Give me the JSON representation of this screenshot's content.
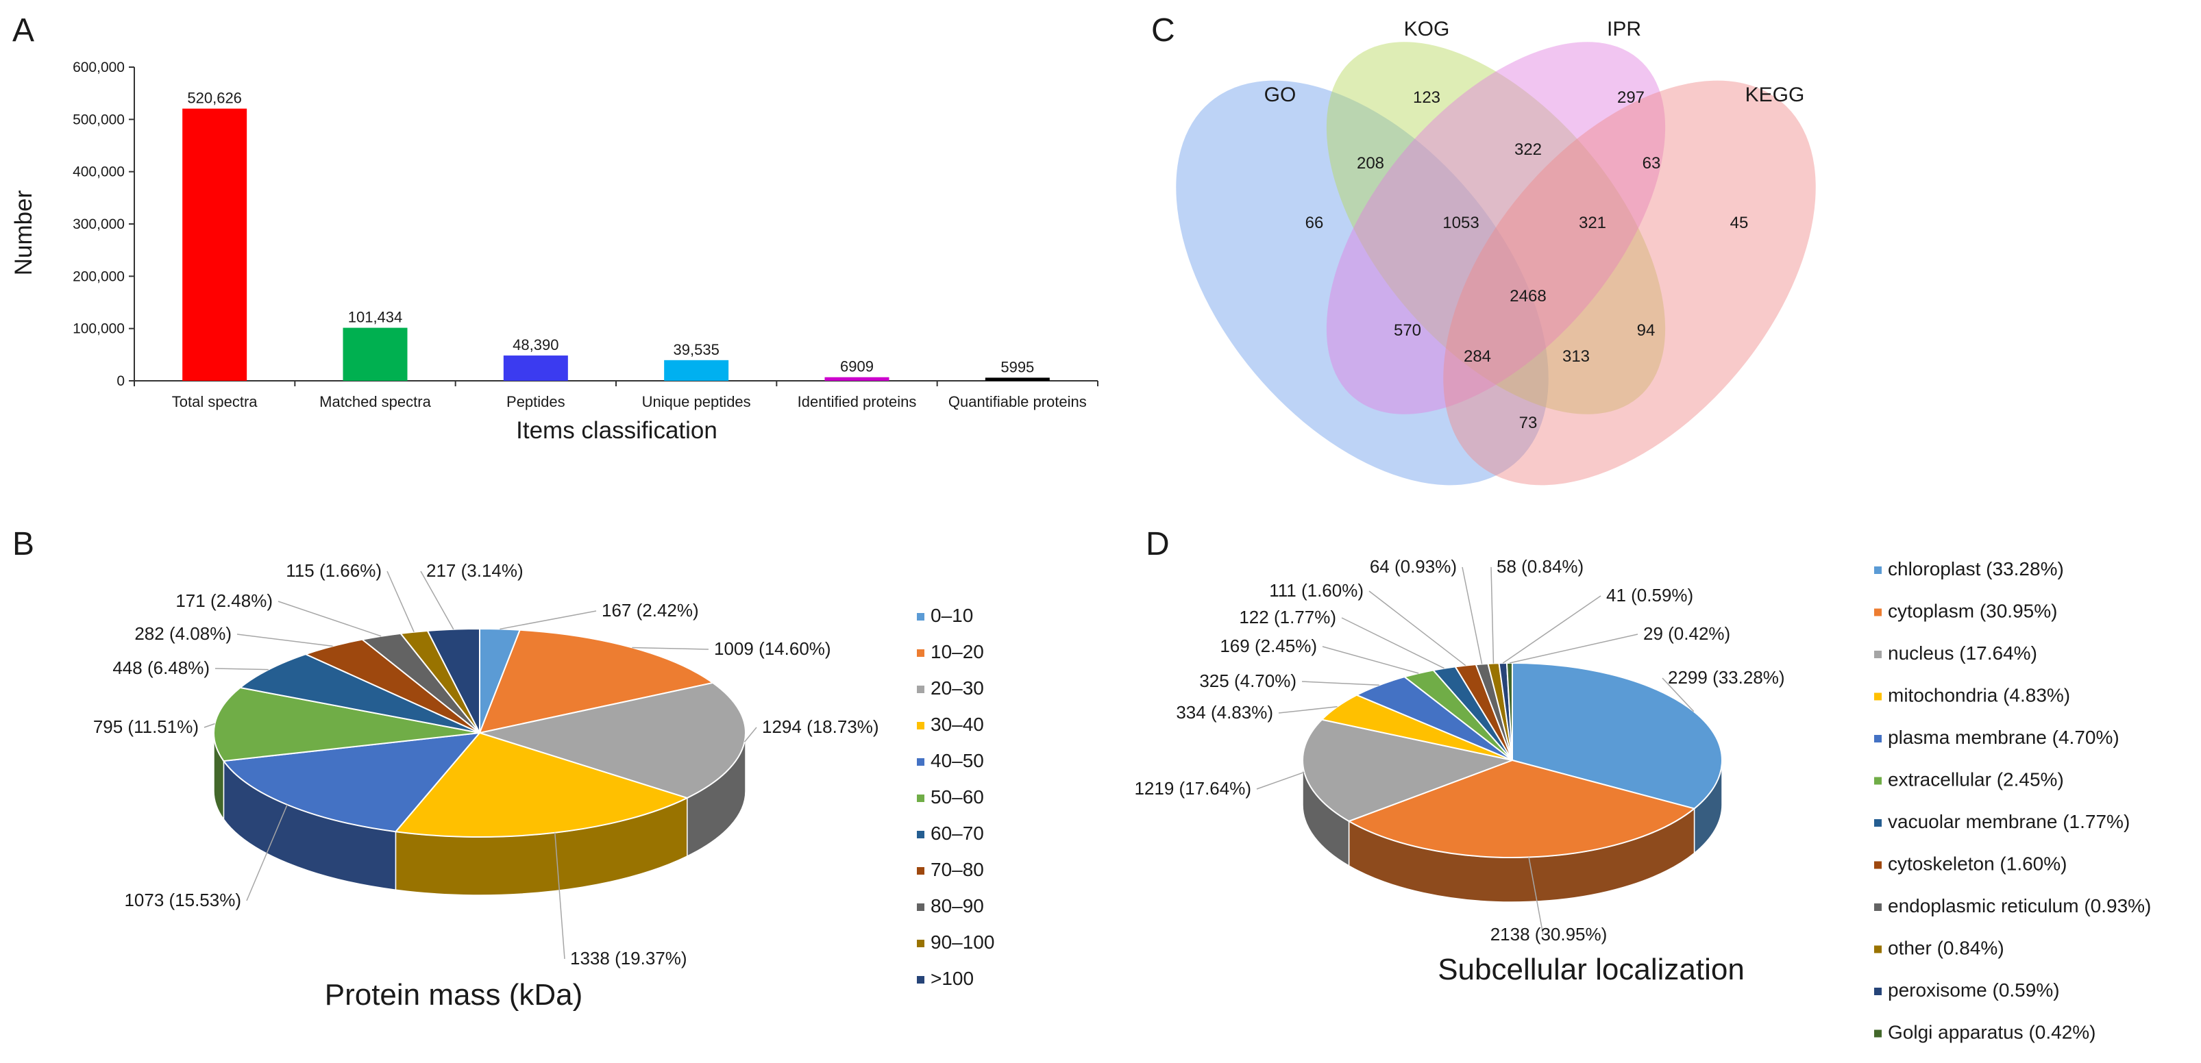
{
  "chart_data": [
    {
      "panel": "A",
      "type": "bar",
      "xlabel": "Items classification",
      "ylabel": "Number",
      "ylim": [
        0,
        600000
      ],
      "yticks": [
        "0",
        "100,000",
        "200,000",
        "300,000",
        "400,000",
        "500,000",
        "600,000"
      ],
      "categories": [
        "Total spectra",
        "Matched spectra",
        "Peptides",
        "Unique peptides",
        "Identified proteins",
        "Quantifiable proteins"
      ],
      "values": [
        520626,
        101434,
        48390,
        39535,
        6909,
        5995
      ],
      "value_labels": [
        "520,626",
        "101,434",
        "48,390",
        "39,535",
        "6909",
        "5995"
      ],
      "colors": [
        "#ff0000",
        "#00b050",
        "#3b3bf0",
        "#00b0f0",
        "#cc00cc",
        "#000000"
      ]
    },
    {
      "panel": "B",
      "type": "pie",
      "title": "Protein mass (kDa)",
      "categories": [
        "0–10",
        "10–20",
        "20–30",
        "30–40",
        "40–50",
        "50–60",
        "60–70",
        "70–80",
        "80–90",
        "90–100",
        ">100"
      ],
      "values": [
        167,
        1009,
        1294,
        1338,
        1073,
        795,
        448,
        282,
        171,
        115,
        217
      ],
      "labels": [
        "167 (2.42%)",
        "1009 (14.60%)",
        "1294 (18.73%)",
        "1338 (19.37%)",
        "1073 (15.53%)",
        "795 (11.51%)",
        "448 (6.48%)",
        "282 (4.08%)",
        "171 (2.48%)",
        "115 (1.66%)",
        "217 (3.14%)"
      ],
      "colors": [
        "#5b9bd5",
        "#ed7d31",
        "#a5a5a5",
        "#ffc000",
        "#4472c4",
        "#70ad47",
        "#255e91",
        "#9e480e",
        "#636363",
        "#997300",
        "#264478"
      ]
    },
    {
      "panel": "C",
      "type": "venn",
      "sets": [
        "GO",
        "KOG",
        "IPR",
        "KEGG"
      ],
      "colors": [
        "#6d9eeb",
        "#b6d75b",
        "#e07ee0",
        "#f08a8a"
      ],
      "regions": [
        {
          "sets": "GO only",
          "value": 66
        },
        {
          "sets": "KOG only",
          "value": 123
        },
        {
          "sets": "IPR only",
          "value": 297
        },
        {
          "sets": "KEGG only",
          "value": 45
        },
        {
          "sets": "GO∩KOG",
          "value": 208
        },
        {
          "sets": "KOG∩IPR",
          "value": 322
        },
        {
          "sets": "IPR∩KEGG",
          "value": 63
        },
        {
          "sets": "GO∩KOG∩IPR",
          "value": 1053
        },
        {
          "sets": "KOG∩IPR∩KEGG",
          "value": 321
        },
        {
          "sets": "all four",
          "value": 2468
        },
        {
          "sets": "GO∩IPR",
          "value": 570
        },
        {
          "sets": "KOG∩KEGG",
          "value": 94
        },
        {
          "sets": "GO∩IPR∩KEGG",
          "value": 284
        },
        {
          "sets": "GO∩KOG∩KEGG",
          "value": 313
        },
        {
          "sets": "GO∩KEGG",
          "value": 73
        }
      ]
    },
    {
      "panel": "D",
      "type": "pie",
      "title": "Subcellular localization",
      "categories": [
        "chloroplast",
        "cytoplasm",
        "nucleus",
        "mitochondria",
        "plasma membrane",
        "extracellular",
        "vacuolar membrane",
        "cytoskeleton",
        "endoplasmic reticulum",
        "other",
        "peroxisome",
        "Golgi apparatus"
      ],
      "values": [
        2299,
        2138,
        1219,
        334,
        325,
        169,
        122,
        111,
        64,
        58,
        41,
        29
      ],
      "labels": [
        "2299 (33.28%)",
        "2138 (30.95%)",
        "1219 (17.64%)",
        "334 (4.83%)",
        "325 (4.70%)",
        "169 (2.45%)",
        "122 (1.77%)",
        "111 (1.60%)",
        "64 (0.93%)",
        "58 (0.84%)",
        "41 (0.59%)",
        "29 (0.42%)"
      ],
      "legend": [
        "chloroplast (33.28%)",
        "cytoplasm (30.95%)",
        "nucleus (17.64%)",
        "mitochondria (4.83%)",
        "plasma membrane (4.70%)",
        "extracellular (2.45%)",
        "vacuolar membrane (1.77%)",
        "cytoskeleton (1.60%)",
        "endoplasmic reticulum (0.93%)",
        "other (0.84%)",
        "peroxisome (0.59%)",
        "Golgi apparatus (0.42%)"
      ],
      "colors": [
        "#5b9bd5",
        "#ed7d31",
        "#a5a5a5",
        "#ffc000",
        "#4472c4",
        "#70ad47",
        "#255e91",
        "#9e480e",
        "#636363",
        "#997300",
        "#264478",
        "#43682b"
      ]
    }
  ]
}
